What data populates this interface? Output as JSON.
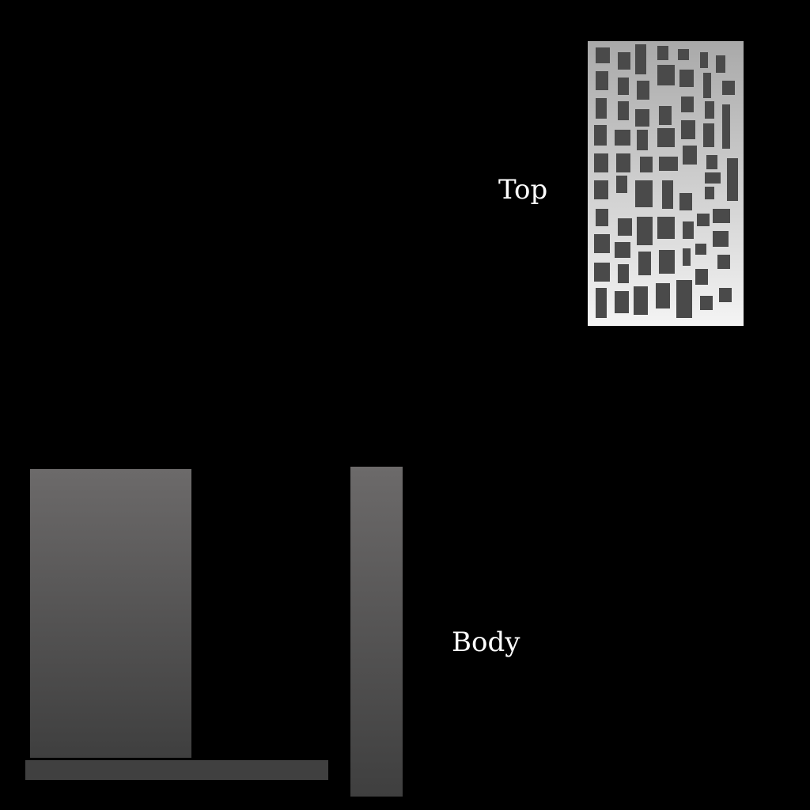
{
  "labels": {
    "top": "Top",
    "body": "Body"
  },
  "colors": {
    "background": "#000000",
    "label_text": "#ffffff",
    "top_panel_light": "#f4f4f4",
    "top_panel_dark": "#a9a9a9",
    "top_cutout": "#4a4a4a",
    "body_light": "#6c6a6a",
    "body_dark": "#3f3f3f"
  }
}
